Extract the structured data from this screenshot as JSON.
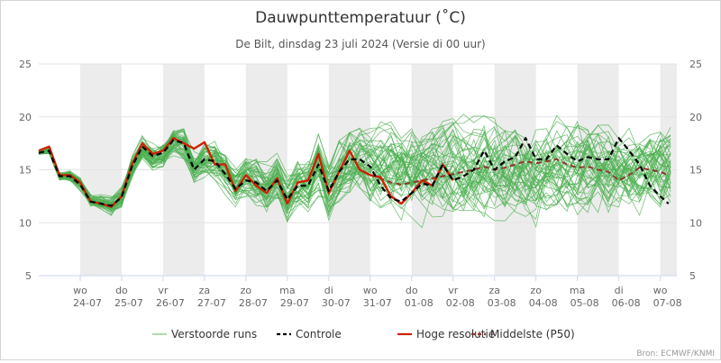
{
  "chart_data": {
    "type": "line",
    "title": "Dauwpunttemperatuur (˚C)",
    "subtitle": "De Bilt, dinsdag 23 juli 2024 (Versie di 00 uur)",
    "source": "Bron: ECMWF/KNMI",
    "ylim": [
      5,
      25
    ],
    "yticks": [
      5,
      10,
      15,
      20,
      25
    ],
    "xlim": [
      0,
      15.4
    ],
    "grid": true,
    "legend_position": "bottom",
    "shaded_day_bands": [
      [
        1,
        2
      ],
      [
        3,
        4
      ],
      [
        5,
        6
      ],
      [
        7,
        8
      ],
      [
        9,
        10
      ],
      [
        11,
        12
      ],
      [
        13,
        14
      ],
      [
        15,
        15.4
      ]
    ],
    "x_ticks": [
      {
        "x": 1,
        "day": "wo",
        "date": "24-07"
      },
      {
        "x": 2,
        "day": "do",
        "date": "25-07"
      },
      {
        "x": 3,
        "day": "vr",
        "date": "26-07"
      },
      {
        "x": 4,
        "day": "za",
        "date": "27-07"
      },
      {
        "x": 5,
        "day": "zo",
        "date": "28-07"
      },
      {
        "x": 6,
        "day": "ma",
        "date": "29-07"
      },
      {
        "x": 7,
        "day": "di",
        "date": "30-07"
      },
      {
        "x": 8,
        "day": "wo",
        "date": "31-07"
      },
      {
        "x": 9,
        "day": "do",
        "date": "01-08"
      },
      {
        "x": 10,
        "day": "vr",
        "date": "02-08"
      },
      {
        "x": 11,
        "day": "za",
        "date": "03-08"
      },
      {
        "x": 12,
        "day": "zo",
        "date": "04-08"
      },
      {
        "x": 13,
        "day": "ma",
        "date": "05-08"
      },
      {
        "x": 14,
        "day": "di",
        "date": "06-08"
      },
      {
        "x": 15,
        "day": "wo",
        "date": "07-08"
      }
    ],
    "legend": [
      {
        "label": "Verstoorde runs",
        "color": "#5cb85c",
        "dash": "solid"
      },
      {
        "label": "Controle",
        "color": "#000000",
        "dash": "dashed"
      },
      {
        "label": "Hoge resolutie",
        "color": "#cc2200",
        "dash": "solid"
      },
      {
        "label": "Middelste (P50)",
        "color": "#8b3a2e",
        "dash": "dashed"
      }
    ],
    "series": [
      {
        "name": "Hoge resolutie",
        "color": "#cc2200",
        "x": [
          0,
          0.25,
          0.5,
          0.75,
          1,
          1.25,
          1.5,
          1.75,
          2,
          2.25,
          2.5,
          2.75,
          3,
          3.25,
          3.5,
          3.75,
          4,
          4.25,
          4.5,
          4.75,
          5,
          5.25,
          5.5,
          5.75,
          6,
          6.25,
          6.5,
          6.75,
          7,
          7.25,
          7.5,
          7.75,
          8,
          8.25,
          8.5,
          8.75,
          9,
          9.25,
          9.5,
          9.75,
          10
        ],
        "y": [
          16.8,
          17.2,
          14.5,
          14.5,
          13.8,
          12.0,
          11.8,
          11.5,
          12.5,
          15.5,
          17.5,
          16.5,
          16.8,
          18.0,
          17.5,
          17.0,
          17.6,
          15.5,
          15.5,
          13.0,
          14.5,
          13.5,
          12.8,
          14.2,
          11.8,
          13.8,
          14.0,
          16.5,
          12.8,
          14.8,
          16.8,
          15.0,
          14.5,
          14.3,
          12.5,
          11.8,
          12.8,
          14.0,
          13.5,
          15.5,
          14.0
        ]
      },
      {
        "name": "Controle",
        "color": "#000000",
        "x": [
          0,
          0.25,
          0.5,
          0.75,
          1,
          1.25,
          1.5,
          1.75,
          2,
          2.25,
          2.5,
          2.75,
          3,
          3.25,
          3.5,
          3.75,
          4,
          4.25,
          4.5,
          4.75,
          5,
          5.25,
          5.5,
          5.75,
          6,
          6.25,
          6.5,
          6.75,
          7,
          7.25,
          7.5,
          7.75,
          8,
          8.25,
          8.5,
          8.75,
          9,
          9.25,
          9.5,
          9.75,
          10,
          10.25,
          10.5,
          10.75,
          11,
          11.25,
          11.5,
          11.75,
          12,
          12.25,
          12.5,
          12.75,
          13,
          13.25,
          13.5,
          13.75,
          14,
          14.25,
          14.5,
          14.75,
          15,
          15.2
        ],
        "y": [
          16.6,
          16.8,
          14.4,
          14.4,
          13.6,
          12.0,
          11.8,
          11.6,
          12.4,
          15.3,
          17.2,
          16.3,
          16.6,
          17.8,
          17.5,
          15.0,
          16.0,
          15.8,
          14.6,
          13.2,
          14.0,
          13.8,
          13.0,
          14.0,
          12.2,
          13.5,
          13.5,
          15.5,
          13.0,
          14.8,
          16.0,
          16.0,
          15.3,
          13.5,
          12.3,
          12.0,
          12.8,
          13.7,
          13.5,
          15.5,
          14.0,
          14.4,
          15.0,
          16.8,
          15.0,
          15.8,
          16.2,
          18.0,
          16.0,
          16.0,
          17.3,
          16.5,
          15.8,
          16.2,
          16.0,
          16.0,
          18.0,
          16.8,
          15.5,
          13.5,
          12.5,
          11.8
        ]
      },
      {
        "name": "Middelste (P50)",
        "color": "#8b3a2e",
        "x": [
          8,
          8.25,
          8.5,
          8.75,
          9,
          9.25,
          9.5,
          9.75,
          10,
          10.25,
          10.5,
          10.75,
          11,
          11.25,
          11.5,
          11.75,
          12,
          12.25,
          12.5,
          12.75,
          13,
          13.25,
          13.5,
          13.75,
          14,
          14.25,
          14.5,
          14.75,
          15,
          15.2
        ],
        "y": [
          14.5,
          14.2,
          13.8,
          13.6,
          13.8,
          14.0,
          14.2,
          14.4,
          14.6,
          14.8,
          15.0,
          15.3,
          15.0,
          15.2,
          15.5,
          15.8,
          15.6,
          15.8,
          16.0,
          15.5,
          15.2,
          15.3,
          15.0,
          14.8,
          14.0,
          14.5,
          15.2,
          15.0,
          14.8,
          14.5
        ]
      }
    ]
  }
}
